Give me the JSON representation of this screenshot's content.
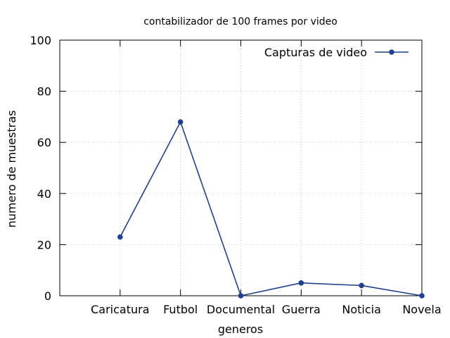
{
  "chart_data": {
    "type": "line",
    "title": "contabilizador de 100 frames por video",
    "xlabel": "generos",
    "ylabel": "numero de muestras",
    "categories": [
      "Caricatura",
      "Futbol",
      "Documental",
      "Guerra",
      "Noticia",
      "Novela"
    ],
    "series": [
      {
        "name": "Capturas de video",
        "values": [
          23,
          68,
          0,
          5,
          4,
          0
        ],
        "color": "#1f3f8f"
      }
    ],
    "ylim": [
      0,
      100
    ],
    "yticks": [
      0,
      20,
      40,
      60,
      80,
      100
    ],
    "grid": true,
    "legend_position": "top-right"
  }
}
